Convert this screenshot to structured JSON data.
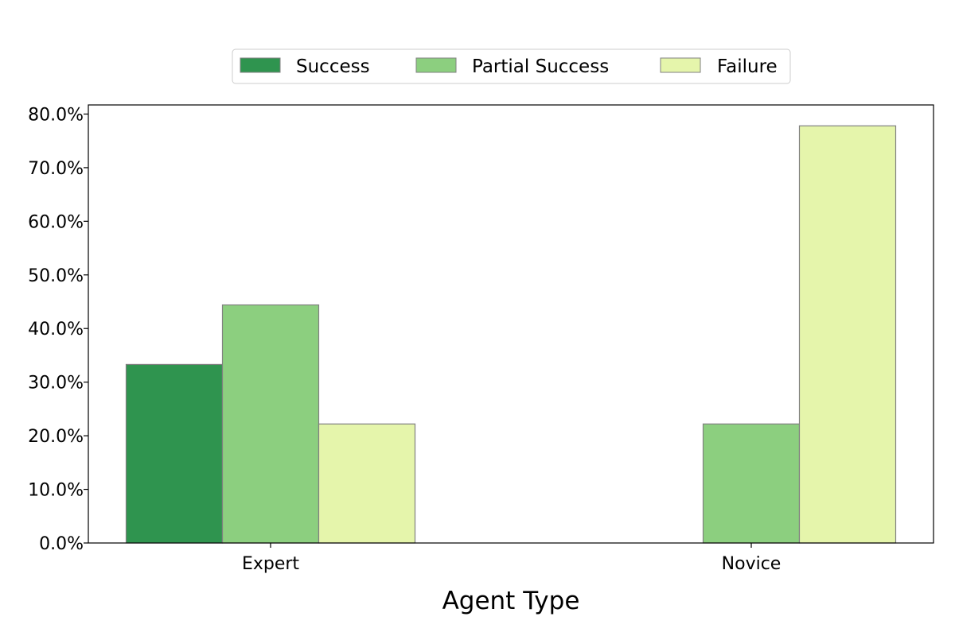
{
  "chart_data": {
    "type": "bar",
    "categories": [
      "Expert",
      "Novice"
    ],
    "series": [
      {
        "name": "Success",
        "values": [
          33.3,
          0.0
        ],
        "color": "#2f944f"
      },
      {
        "name": "Partial Success",
        "values": [
          44.4,
          22.2
        ],
        "color": "#8ccf7f"
      },
      {
        "name": "Failure",
        "values": [
          22.2,
          77.8
        ],
        "color": "#e5f5ab"
      }
    ],
    "title": "",
    "xlabel": "Agent Type",
    "ylabel": "",
    "ylim": [
      0,
      81.7
    ],
    "yticks": [
      0,
      10,
      20,
      30,
      40,
      50,
      60,
      70,
      80
    ],
    "ytick_format": "percent-1dp",
    "grid": false,
    "legend": "top-center",
    "bar_edge_color": "#808080"
  }
}
